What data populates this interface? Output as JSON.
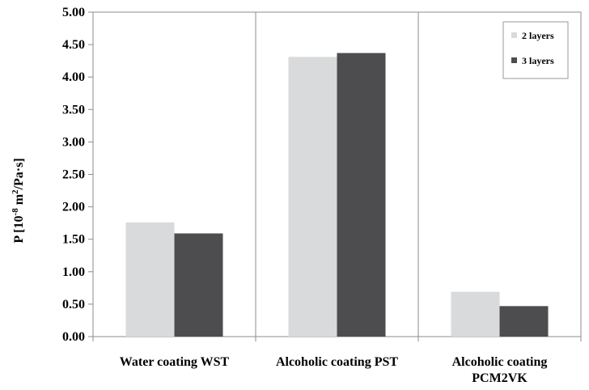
{
  "chart_data": {
    "type": "bar",
    "categories": [
      [
        "Water coating  WST"
      ],
      [
        "Alcoholic coating PST"
      ],
      [
        "Alcoholic coating",
        "PCM2VK"
      ]
    ],
    "series": [
      {
        "name": "2 layers",
        "values": [
          1.76,
          4.31,
          0.69
        ],
        "color": "#d9dadb"
      },
      {
        "name": "3 layers",
        "values": [
          1.59,
          4.37,
          0.47
        ],
        "color": "#4d4d4f"
      }
    ],
    "ylabel": {
      "prefix": "P [10",
      "sup1": "-8",
      "mid": " m",
      "sup2": "2",
      "suffix": "/Pa·s]"
    },
    "ylim": [
      0,
      5
    ],
    "yticks": [
      "0.00",
      "0.50",
      "1.00",
      "1.50",
      "2.00",
      "2.50",
      "3.00",
      "3.50",
      "4.00",
      "4.50",
      "5.00"
    ],
    "grid": "vertical separators between categories",
    "legend_position": "top-right"
  }
}
